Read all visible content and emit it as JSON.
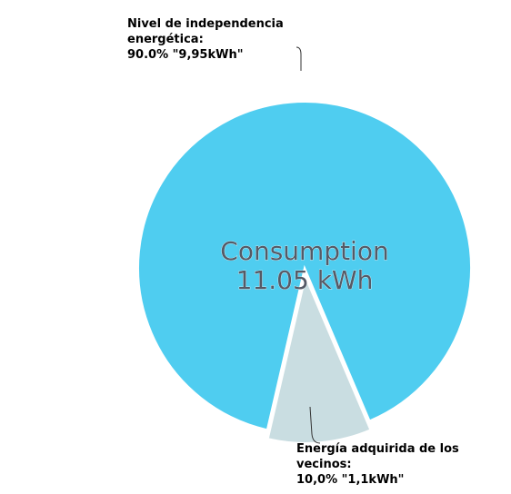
{
  "chart_data": {
    "type": "pie",
    "categories": [
      "Nivel de independencia energética:",
      "Energía adquirida de los vecinos:"
    ],
    "values": [
      90.0,
      10.0
    ],
    "value_labels": [
      "90.0% \"9,95kWh\"",
      "10,0% \"1,1kWh\""
    ],
    "colors": [
      "#4fcdf0",
      "#c9dde1"
    ],
    "center_text": [
      "Consumption",
      "11.05 kWh"
    ]
  }
}
